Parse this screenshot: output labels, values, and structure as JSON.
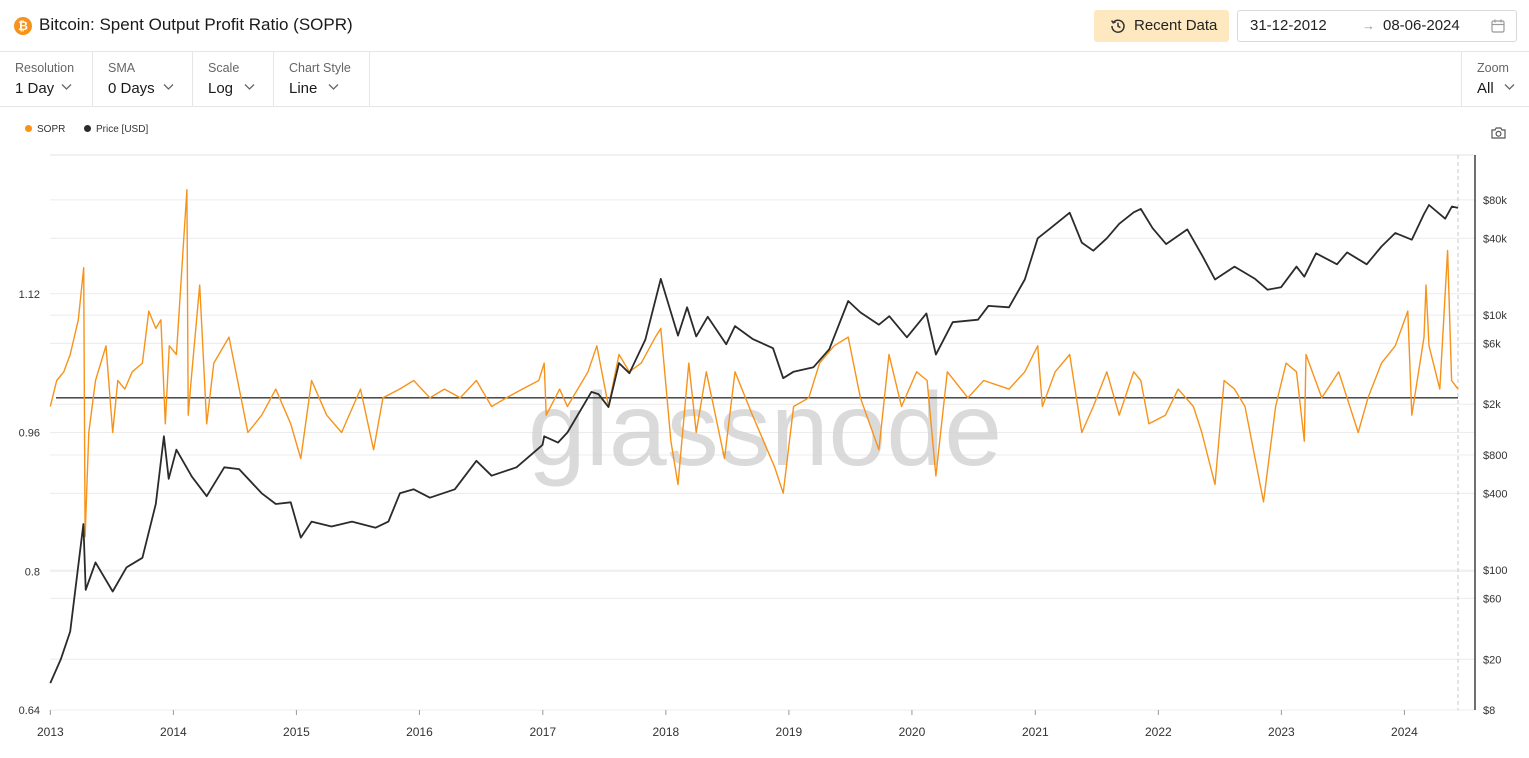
{
  "header": {
    "logo_glyph": "₿",
    "title": "Bitcoin: Spent Output Profit Ratio (SOPR)",
    "recent_button": "Recent Data",
    "date_start": "31-12-2012",
    "date_arrow": "→",
    "date_end": "08-06-2024"
  },
  "controls": [
    {
      "label": "Resolution",
      "value": "1 Day"
    },
    {
      "label": "SMA",
      "value": "0 Days"
    },
    {
      "label": "Scale",
      "value": "Log"
    },
    {
      "label": "Chart Style",
      "value": "Line"
    }
  ],
  "zoom": {
    "label": "Zoom",
    "value": "All"
  },
  "icons": {
    "logo": "bitcoin-logo-icon",
    "recent": "history-icon",
    "calendar": "calendar-icon",
    "dropdown": "chevron-down-icon",
    "camera": "camera-icon"
  },
  "colors": {
    "sopr": "#f7931a",
    "price": "#2b2b2b",
    "baseline": "#333333",
    "grid": "#ececec",
    "watermark": "#d4d4d4"
  },
  "watermark": "glassnode",
  "chart_data": {
    "type": "line",
    "title": "Bitcoin: Spent Output Profit Ratio (SOPR)",
    "x_ticks": [
      "2013",
      "2014",
      "2015",
      "2016",
      "2017",
      "2018",
      "2019",
      "2020",
      "2021",
      "2022",
      "2023",
      "2024"
    ],
    "x_range": [
      "2012-12-31",
      "2024-06-08"
    ],
    "legend": [
      "SOPR",
      "Price [USD]"
    ],
    "legend_position": "top-left",
    "left_axis": {
      "ticks": [
        "0.64",
        "0.8",
        "0.96",
        "1.12"
      ],
      "range": [
        0.64,
        1.28
      ],
      "scale": "linear"
    },
    "right_axis": {
      "ticks": [
        "$8",
        "$20",
        "$60",
        "$100",
        "$400",
        "$800",
        "$2k",
        "$6k",
        "$10k",
        "$40k",
        "$80k"
      ],
      "range": [
        8,
        180000
      ],
      "scale": "log"
    },
    "sopr_baseline": 1.0,
    "series": [
      {
        "name": "SOPR",
        "axis": "left",
        "points": [
          [
            "2013-01-01",
            0.99
          ],
          [
            "2013-01-20",
            1.02
          ],
          [
            "2013-02-10",
            1.03
          ],
          [
            "2013-03-01",
            1.05
          ],
          [
            "2013-03-25",
            1.09
          ],
          [
            "2013-04-10",
            1.15
          ],
          [
            "2013-04-14",
            0.84
          ],
          [
            "2013-04-25",
            0.96
          ],
          [
            "2013-05-15",
            1.02
          ],
          [
            "2013-06-15",
            1.06
          ],
          [
            "2013-07-05",
            0.96
          ],
          [
            "2013-07-20",
            1.02
          ],
          [
            "2013-08-10",
            1.01
          ],
          [
            "2013-09-01",
            1.03
          ],
          [
            "2013-10-01",
            1.04
          ],
          [
            "2013-10-20",
            1.1
          ],
          [
            "2013-11-10",
            1.08
          ],
          [
            "2013-11-25",
            1.09
          ],
          [
            "2013-12-08",
            0.97
          ],
          [
            "2013-12-20",
            1.06
          ],
          [
            "2014-01-10",
            1.05
          ],
          [
            "2014-02-10",
            1.24
          ],
          [
            "2014-02-14",
            0.98
          ],
          [
            "2014-02-25",
            1.03
          ],
          [
            "2014-03-20",
            1.13
          ],
          [
            "2014-04-10",
            0.97
          ],
          [
            "2014-05-01",
            1.04
          ],
          [
            "2014-06-15",
            1.07
          ],
          [
            "2014-08-10",
            0.96
          ],
          [
            "2014-09-20",
            0.98
          ],
          [
            "2014-11-01",
            1.01
          ],
          [
            "2014-12-15",
            0.97
          ],
          [
            "2015-01-14",
            0.93
          ],
          [
            "2015-02-15",
            1.02
          ],
          [
            "2015-04-01",
            0.98
          ],
          [
            "2015-05-15",
            0.96
          ],
          [
            "2015-07-10",
            1.01
          ],
          [
            "2015-08-18",
            0.94
          ],
          [
            "2015-09-15",
            1.0
          ],
          [
            "2015-11-03",
            1.01
          ],
          [
            "2015-12-15",
            1.02
          ],
          [
            "2016-02-01",
            1.0
          ],
          [
            "2016-03-15",
            1.01
          ],
          [
            "2016-05-01",
            1.0
          ],
          [
            "2016-06-18",
            1.02
          ],
          [
            "2016-08-02",
            0.99
          ],
          [
            "2016-09-15",
            1.0
          ],
          [
            "2016-11-01",
            1.01
          ],
          [
            "2016-12-20",
            1.02
          ],
          [
            "2017-01-05",
            1.04
          ],
          [
            "2017-01-11",
            0.98
          ],
          [
            "2017-02-20",
            1.01
          ],
          [
            "2017-03-15",
            0.99
          ],
          [
            "2017-05-15",
            1.03
          ],
          [
            "2017-06-10",
            1.06
          ],
          [
            "2017-07-15",
            0.99
          ],
          [
            "2017-08-15",
            1.05
          ],
          [
            "2017-09-15",
            1.03
          ],
          [
            "2017-10-20",
            1.04
          ],
          [
            "2017-12-01",
            1.07
          ],
          [
            "2017-12-17",
            1.08
          ],
          [
            "2018-01-16",
            0.95
          ],
          [
            "2018-02-06",
            0.9
          ],
          [
            "2018-03-10",
            1.04
          ],
          [
            "2018-04-01",
            0.96
          ],
          [
            "2018-05-01",
            1.03
          ],
          [
            "2018-06-24",
            0.93
          ],
          [
            "2018-07-25",
            1.03
          ],
          [
            "2018-09-15",
            0.98
          ],
          [
            "2018-11-20",
            0.92
          ],
          [
            "2018-12-15",
            0.89
          ],
          [
            "2019-01-15",
            0.99
          ],
          [
            "2019-03-01",
            1.0
          ],
          [
            "2019-04-02",
            1.04
          ],
          [
            "2019-05-15",
            1.06
          ],
          [
            "2019-06-26",
            1.07
          ],
          [
            "2019-08-01",
            1.0
          ],
          [
            "2019-09-25",
            0.94
          ],
          [
            "2019-10-25",
            1.05
          ],
          [
            "2019-12-01",
            0.99
          ],
          [
            "2020-01-15",
            1.03
          ],
          [
            "2020-02-15",
            1.02
          ],
          [
            "2020-03-12",
            0.91
          ],
          [
            "2020-04-15",
            1.03
          ],
          [
            "2020-06-15",
            1.0
          ],
          [
            "2020-08-01",
            1.02
          ],
          [
            "2020-10-15",
            1.01
          ],
          [
            "2020-12-01",
            1.03
          ],
          [
            "2021-01-08",
            1.06
          ],
          [
            "2021-01-22",
            0.99
          ],
          [
            "2021-03-01",
            1.03
          ],
          [
            "2021-04-13",
            1.05
          ],
          [
            "2021-05-19",
            0.96
          ],
          [
            "2021-06-22",
            0.99
          ],
          [
            "2021-08-01",
            1.03
          ],
          [
            "2021-09-07",
            0.98
          ],
          [
            "2021-10-20",
            1.03
          ],
          [
            "2021-11-10",
            1.02
          ],
          [
            "2021-12-04",
            0.97
          ],
          [
            "2022-01-22",
            0.98
          ],
          [
            "2022-03-01",
            1.01
          ],
          [
            "2022-04-15",
            0.99
          ],
          [
            "2022-05-10",
            0.96
          ],
          [
            "2022-06-18",
            0.9
          ],
          [
            "2022-07-15",
            1.02
          ],
          [
            "2022-08-15",
            1.01
          ],
          [
            "2022-09-15",
            0.99
          ],
          [
            "2022-11-09",
            0.88
          ],
          [
            "2022-12-15",
            0.99
          ],
          [
            "2023-01-15",
            1.04
          ],
          [
            "2023-02-15",
            1.03
          ],
          [
            "2023-03-10",
            0.95
          ],
          [
            "2023-03-15",
            1.05
          ],
          [
            "2023-05-01",
            1.0
          ],
          [
            "2023-06-20",
            1.03
          ],
          [
            "2023-08-17",
            0.96
          ],
          [
            "2023-09-15",
            1.0
          ],
          [
            "2023-10-25",
            1.04
          ],
          [
            "2023-12-05",
            1.06
          ],
          [
            "2024-01-11",
            1.1
          ],
          [
            "2024-01-23",
            0.98
          ],
          [
            "2024-02-28",
            1.07
          ],
          [
            "2024-03-05",
            1.13
          ],
          [
            "2024-03-14",
            1.06
          ],
          [
            "2024-04-15",
            1.01
          ],
          [
            "2024-05-08",
            1.17
          ],
          [
            "2024-05-20",
            1.02
          ],
          [
            "2024-06-08",
            1.01
          ]
        ]
      },
      {
        "name": "Price [USD]",
        "axis": "right",
        "points": [
          [
            "2013-01-01",
            13
          ],
          [
            "2013-02-01",
            20
          ],
          [
            "2013-03-01",
            33
          ],
          [
            "2013-04-09",
            230
          ],
          [
            "2013-04-16",
            70
          ],
          [
            "2013-05-15",
            115
          ],
          [
            "2013-07-05",
            68
          ],
          [
            "2013-08-15",
            105
          ],
          [
            "2013-10-01",
            125
          ],
          [
            "2013-11-10",
            330
          ],
          [
            "2013-12-04",
            1120
          ],
          [
            "2013-12-18",
            520
          ],
          [
            "2014-01-10",
            880
          ],
          [
            "2014-02-25",
            540
          ],
          [
            "2014-04-10",
            380
          ],
          [
            "2014-06-01",
            640
          ],
          [
            "2014-07-15",
            620
          ],
          [
            "2014-09-20",
            400
          ],
          [
            "2014-11-01",
            330
          ],
          [
            "2014-12-15",
            340
          ],
          [
            "2015-01-14",
            180
          ],
          [
            "2015-02-15",
            240
          ],
          [
            "2015-04-15",
            220
          ],
          [
            "2015-06-15",
            240
          ],
          [
            "2015-08-24",
            215
          ],
          [
            "2015-10-01",
            240
          ],
          [
            "2015-11-04",
            400
          ],
          [
            "2015-12-15",
            430
          ],
          [
            "2016-02-01",
            370
          ],
          [
            "2016-04-15",
            430
          ],
          [
            "2016-06-18",
            720
          ],
          [
            "2016-08-02",
            550
          ],
          [
            "2016-10-15",
            640
          ],
          [
            "2016-12-31",
            960
          ],
          [
            "2017-01-05",
            1120
          ],
          [
            "2017-02-15",
            1000
          ],
          [
            "2017-03-15",
            1200
          ],
          [
            "2017-05-25",
            2500
          ],
          [
            "2017-06-15",
            2400
          ],
          [
            "2017-07-15",
            1900
          ],
          [
            "2017-08-15",
            4200
          ],
          [
            "2017-09-15",
            3500
          ],
          [
            "2017-11-01",
            6400
          ],
          [
            "2017-12-17",
            19200
          ],
          [
            "2018-02-06",
            6900
          ],
          [
            "2018-03-05",
            11500
          ],
          [
            "2018-04-01",
            6800
          ],
          [
            "2018-05-05",
            9700
          ],
          [
            "2018-06-29",
            5900
          ],
          [
            "2018-07-25",
            8200
          ],
          [
            "2018-09-15",
            6500
          ],
          [
            "2018-11-15",
            5500
          ],
          [
            "2018-12-15",
            3200
          ],
          [
            "2019-01-15",
            3600
          ],
          [
            "2019-03-15",
            3900
          ],
          [
            "2019-05-01",
            5400
          ],
          [
            "2019-06-26",
            12900
          ],
          [
            "2019-08-01",
            10500
          ],
          [
            "2019-09-25",
            8400
          ],
          [
            "2019-10-26",
            9800
          ],
          [
            "2019-12-17",
            6700
          ],
          [
            "2020-02-13",
            10300
          ],
          [
            "2020-03-12",
            4900
          ],
          [
            "2020-05-01",
            8800
          ],
          [
            "2020-07-15",
            9200
          ],
          [
            "2020-08-15",
            11800
          ],
          [
            "2020-10-15",
            11500
          ],
          [
            "2020-12-01",
            19000
          ],
          [
            "2021-01-08",
            40000
          ],
          [
            "2021-02-15",
            48000
          ],
          [
            "2021-04-13",
            63500
          ],
          [
            "2021-05-19",
            37000
          ],
          [
            "2021-06-22",
            32000
          ],
          [
            "2021-08-01",
            40000
          ],
          [
            "2021-09-07",
            52000
          ],
          [
            "2021-10-20",
            64000
          ],
          [
            "2021-11-10",
            68000
          ],
          [
            "2021-12-15",
            48000
          ],
          [
            "2022-01-24",
            36000
          ],
          [
            "2022-03-28",
            47000
          ],
          [
            "2022-05-12",
            29000
          ],
          [
            "2022-06-18",
            19000
          ],
          [
            "2022-08-15",
            24000
          ],
          [
            "2022-10-15",
            19200
          ],
          [
            "2022-11-21",
            15800
          ],
          [
            "2022-12-31",
            16500
          ],
          [
            "2023-02-15",
            24000
          ],
          [
            "2023-03-10",
            20000
          ],
          [
            "2023-04-14",
            30500
          ],
          [
            "2023-06-15",
            25000
          ],
          [
            "2023-07-15",
            31000
          ],
          [
            "2023-09-11",
            25000
          ],
          [
            "2023-10-25",
            34500
          ],
          [
            "2023-12-05",
            44000
          ],
          [
            "2024-01-23",
            39000
          ],
          [
            "2024-02-28",
            62000
          ],
          [
            "2024-03-14",
            73000
          ],
          [
            "2024-05-01",
            57000
          ],
          [
            "2024-05-21",
            71000
          ],
          [
            "2024-06-08",
            69300
          ]
        ]
      }
    ]
  }
}
